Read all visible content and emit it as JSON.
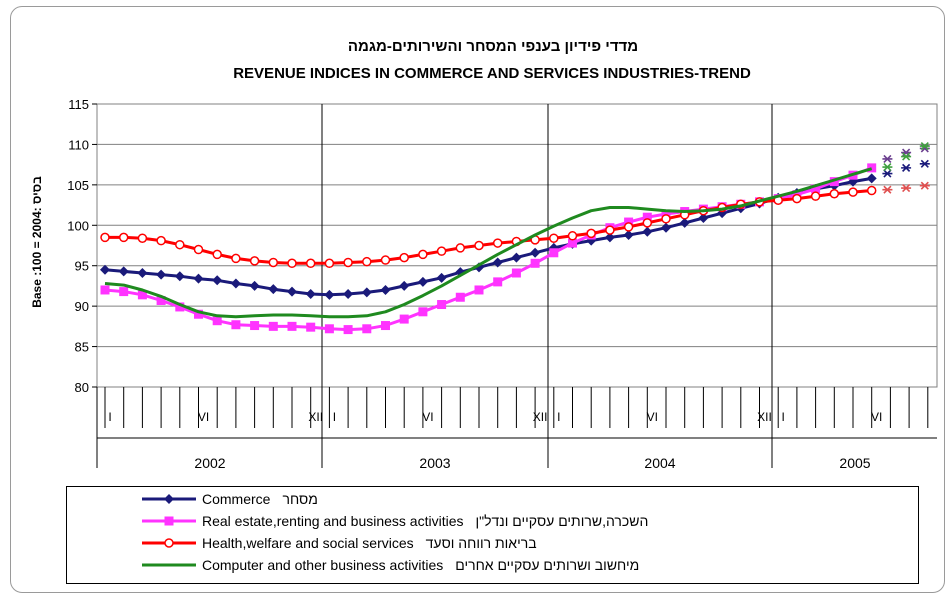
{
  "chart_data": {
    "type": "line",
    "title": "מדדי פידיון בענפי המסחר והשירותים-מגמה",
    "subtitle": "REVENUE INDICES IN COMMERCE AND SERVICES INDUSTRIES-TREND",
    "ylabel": "Base :100 = 2004: בסיס",
    "ylim": [
      80,
      115
    ],
    "yticks": [
      80,
      85,
      90,
      95,
      100,
      105,
      110,
      115
    ],
    "grid": true,
    "legend_position": "bottom",
    "years": [
      "2002",
      "2003",
      "2004",
      "2005"
    ],
    "month_marks": [
      "I",
      "VI",
      "XII"
    ],
    "series": [
      {
        "name": "Commerce",
        "name_hebrew": "מסחר",
        "color": "#1a1a7a",
        "marker": "diamond",
        "values": [
          94.5,
          94.3,
          94.1,
          93.9,
          93.7,
          93.4,
          93.2,
          92.8,
          92.5,
          92.1,
          91.8,
          91.5,
          91.4,
          91.5,
          91.7,
          92.0,
          92.5,
          93.0,
          93.5,
          94.2,
          94.8,
          95.4,
          96.0,
          96.6,
          97.2,
          97.7,
          98.1,
          98.5,
          98.8,
          99.2,
          99.7,
          100.3,
          100.9,
          101.5,
          102.1,
          102.7,
          103.4,
          104.0,
          104.5,
          104.9,
          105.4,
          105.8
        ]
      },
      {
        "name": "Real estate,renting and business activities",
        "name_hebrew": "השכרה,שרותים עסקיים ונדל\"ן",
        "color": "#ff33ff",
        "marker": "square",
        "values": [
          92.0,
          91.8,
          91.4,
          90.7,
          89.9,
          89.0,
          88.2,
          87.7,
          87.6,
          87.5,
          87.5,
          87.4,
          87.2,
          87.1,
          87.2,
          87.6,
          88.4,
          89.3,
          90.2,
          91.1,
          92.0,
          93.0,
          94.1,
          95.3,
          96.6,
          97.8,
          98.8,
          99.7,
          100.4,
          101.0,
          101.4,
          101.7,
          102.0,
          102.3,
          102.6,
          102.9,
          103.3,
          103.8,
          104.5,
          105.4,
          106.2,
          107.1
        ]
      },
      {
        "name": "Health,welfare and social services",
        "name_hebrew": "בריאות רווחה וסעד",
        "color": "#ff0000",
        "marker": "circle",
        "values": [
          98.5,
          98.5,
          98.4,
          98.1,
          97.6,
          97.0,
          96.4,
          95.9,
          95.6,
          95.4,
          95.3,
          95.3,
          95.3,
          95.4,
          95.5,
          95.7,
          96.0,
          96.4,
          96.8,
          97.2,
          97.5,
          97.8,
          98.0,
          98.2,
          98.4,
          98.7,
          99.0,
          99.4,
          99.8,
          100.3,
          100.8,
          101.3,
          101.8,
          102.2,
          102.6,
          102.9,
          103.1,
          103.3,
          103.6,
          103.9,
          104.1,
          104.3
        ]
      },
      {
        "name": "Computer and other business activities",
        "name_hebrew": "מיחשוב ושרותים עסקיים אחרים",
        "color": "#1f8a1f",
        "marker": "none",
        "values": [
          92.8,
          92.6,
          92.0,
          91.2,
          90.2,
          89.3,
          88.8,
          88.7,
          88.8,
          88.9,
          88.9,
          88.8,
          88.7,
          88.7,
          88.8,
          89.3,
          90.2,
          91.3,
          92.5,
          93.8,
          95.1,
          96.4,
          97.6,
          98.8,
          99.9,
          100.9,
          101.8,
          102.2,
          102.2,
          102.0,
          101.8,
          101.7,
          101.8,
          102.0,
          102.4,
          103.0,
          103.6,
          104.2,
          104.9,
          105.6,
          106.3,
          107.0
        ]
      }
    ],
    "projections": [
      {
        "series": "Commerce",
        "color": "#1a1a7a",
        "values": [
          106.4,
          107.1,
          107.6
        ]
      },
      {
        "series": "Real estate,renting and business activities",
        "color": "#6b3f8f",
        "values": [
          108.2,
          109.0,
          109.5
        ]
      },
      {
        "series": "Health,welfare and social services",
        "color": "#e05050",
        "values": [
          104.4,
          104.6,
          104.9
        ]
      },
      {
        "series": "Computer and other business activities",
        "color": "#40a040",
        "values": [
          107.2,
          108.5,
          109.8
        ]
      }
    ]
  }
}
